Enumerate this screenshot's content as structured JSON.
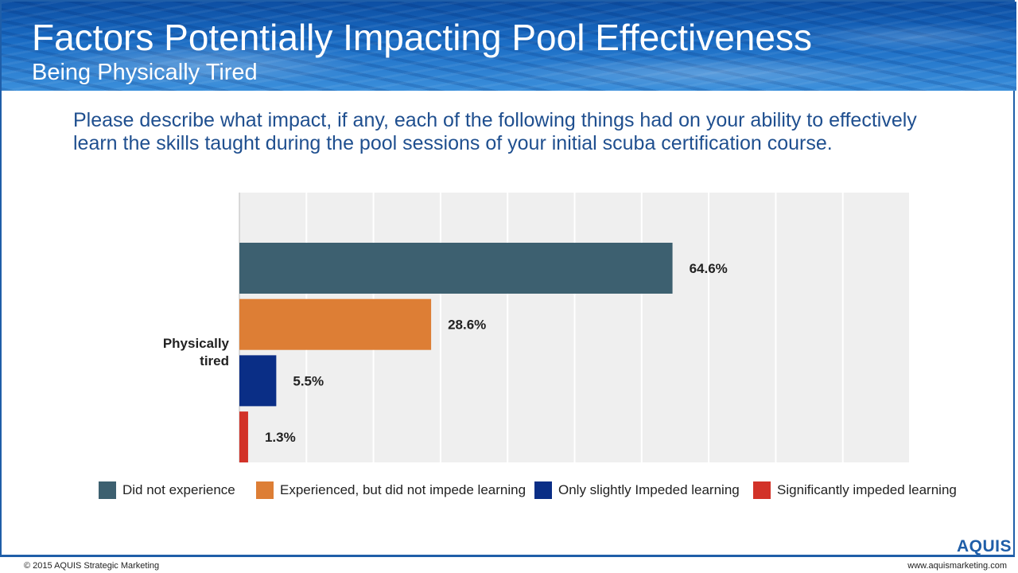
{
  "header": {
    "title": "Factors Potentially Impacting Pool Effectiveness",
    "subtitle": "Being Physically Tired"
  },
  "question": "Please describe what impact, if any, each of the following things had on your ability to effectively learn the skills taught during the pool sessions of your initial scuba certification course.",
  "chart_data": {
    "type": "bar",
    "orientation": "horizontal",
    "categories": [
      "Physically tired"
    ],
    "category_label_lines": [
      "Physically",
      "tired"
    ],
    "series": [
      {
        "name": "Did not experience",
        "values": [
          64.6
        ],
        "label": "64.6%",
        "color": "#3d6070"
      },
      {
        "name": "Experienced, but did not impede learning",
        "values": [
          28.6
        ],
        "label": "28.6%",
        "color": "#dd7e35"
      },
      {
        "name": "Only slightly Impeded learning",
        "values": [
          5.5
        ],
        "label": "5.5%",
        "color": "#0a2e86"
      },
      {
        "name": "Significantly impeded learning",
        "values": [
          1.3
        ],
        "label": "1.3%",
        "color": "#d23228"
      }
    ],
    "xlim": [
      0,
      100
    ],
    "grid": true,
    "legend_position": "bottom",
    "title": "",
    "xlabel": "",
    "ylabel": ""
  },
  "footer": {
    "logo": "AQUIS",
    "copyright": "© 2015 AQUIS Strategic Marketing",
    "website": "www.aquismarketing.com"
  }
}
